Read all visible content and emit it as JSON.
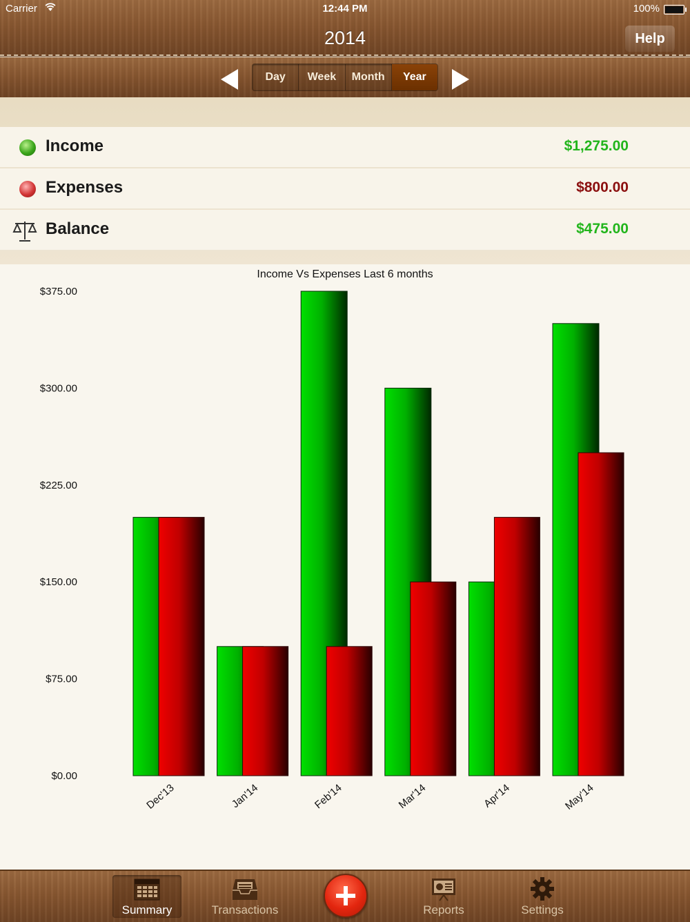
{
  "status_bar": {
    "carrier": "Carrier",
    "time": "12:44 PM",
    "battery": "100%"
  },
  "header": {
    "title": "2014",
    "help_label": "Help"
  },
  "period_selector": {
    "options": [
      "Day",
      "Week",
      "Month",
      "Year"
    ],
    "selected": "Year"
  },
  "summary": {
    "income": {
      "label": "Income",
      "value": "$1,275.00"
    },
    "expenses": {
      "label": "Expenses",
      "value": "$800.00"
    },
    "balance": {
      "label": "Balance",
      "value": "$475.00"
    }
  },
  "colors": {
    "income": "#22b51c",
    "expenses": "#8b0f0f",
    "income_bar": "#00d000",
    "expense_bar": "#d80000"
  },
  "chart_data": {
    "type": "bar",
    "title": "Income Vs Expenses Last 6 months",
    "categories": [
      "Dec'13",
      "Jan'14",
      "Feb'14",
      "Mar'14",
      "Apr'14",
      "May'14"
    ],
    "series": [
      {
        "values": [
          200,
          100,
          375,
          300,
          150,
          350
        ]
      },
      {
        "values": [
          200,
          100,
          100,
          150,
          200,
          250
        ]
      }
    ],
    "yticks": [
      "$0.00",
      "$75.00",
      "$150.00",
      "$225.00",
      "$300.00",
      "$375.00"
    ],
    "ylim": [
      0,
      375
    ],
    "grid": false
  },
  "tabbar": {
    "items": [
      {
        "label": "Summary",
        "icon": "calendar-icon"
      },
      {
        "label": "Transactions",
        "icon": "inbox-tray-icon"
      },
      {
        "label": "Reports",
        "icon": "presentation-icon"
      },
      {
        "label": "Settings",
        "icon": "gear-icon"
      }
    ],
    "selected": "Summary",
    "add_icon": "plus-icon"
  }
}
